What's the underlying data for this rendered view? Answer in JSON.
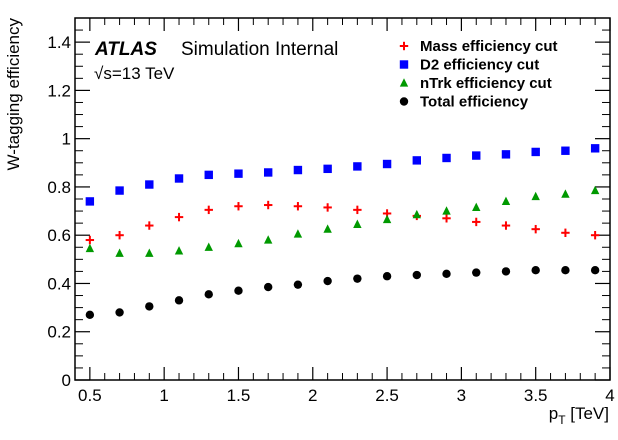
{
  "chart_data": {
    "type": "scatter",
    "experiment_label": "ATLAS",
    "status_label": "Simulation Internal",
    "energy_label": "√s=13 TeV",
    "xlabel": "p",
    "xlabel_sub": "T",
    "xlabel_unit": " [TeV]",
    "ylabel": "W-tagging efficiency",
    "xlim": [
      0.4,
      4.0
    ],
    "ylim": [
      0,
      1.5
    ],
    "x_ticks": [
      0.5,
      1,
      1.5,
      2,
      2.5,
      3,
      3.5,
      4
    ],
    "x_tick_labels": [
      "0.5",
      "1",
      "1.5",
      "2",
      "2.5",
      "3",
      "3.5",
      "4"
    ],
    "y_ticks": [
      0,
      0.2,
      0.4,
      0.6,
      0.8,
      1,
      1.2,
      1.4
    ],
    "y_tick_labels": [
      "0",
      "0.2",
      "0.4",
      "0.6",
      "0.8",
      "1",
      "1.2",
      "1.4"
    ],
    "grid": false,
    "legend_position": "top-right",
    "x": [
      0.5,
      0.7,
      0.9,
      1.1,
      1.3,
      1.5,
      1.7,
      1.9,
      2.1,
      2.3,
      2.5,
      2.7,
      2.9,
      3.1,
      3.3,
      3.5,
      3.7,
      3.9
    ],
    "series": [
      {
        "name": "Mass efficiency cut",
        "marker": "cross",
        "color": "#ff0000",
        "values": [
          0.58,
          0.6,
          0.64,
          0.675,
          0.705,
          0.72,
          0.725,
          0.72,
          0.715,
          0.705,
          0.69,
          0.68,
          0.67,
          0.655,
          0.64,
          0.625,
          0.61,
          0.6
        ]
      },
      {
        "name": "D2 efficiency cut",
        "marker": "square",
        "color": "#0000ff",
        "values": [
          0.74,
          0.785,
          0.81,
          0.835,
          0.85,
          0.855,
          0.86,
          0.87,
          0.875,
          0.885,
          0.895,
          0.91,
          0.92,
          0.93,
          0.935,
          0.945,
          0.95,
          0.96
        ]
      },
      {
        "name": "nTrk efficiency cut",
        "marker": "triangle",
        "color": "#009900",
        "values": [
          0.545,
          0.525,
          0.525,
          0.535,
          0.55,
          0.565,
          0.58,
          0.605,
          0.625,
          0.645,
          0.665,
          0.685,
          0.7,
          0.715,
          0.74,
          0.76,
          0.77,
          0.785
        ]
      },
      {
        "name": "Total efficiency",
        "marker": "circle",
        "color": "#000000",
        "values": [
          0.27,
          0.28,
          0.305,
          0.33,
          0.355,
          0.37,
          0.385,
          0.395,
          0.41,
          0.42,
          0.43,
          0.435,
          0.44,
          0.445,
          0.45,
          0.455,
          0.455,
          0.455
        ]
      }
    ]
  }
}
